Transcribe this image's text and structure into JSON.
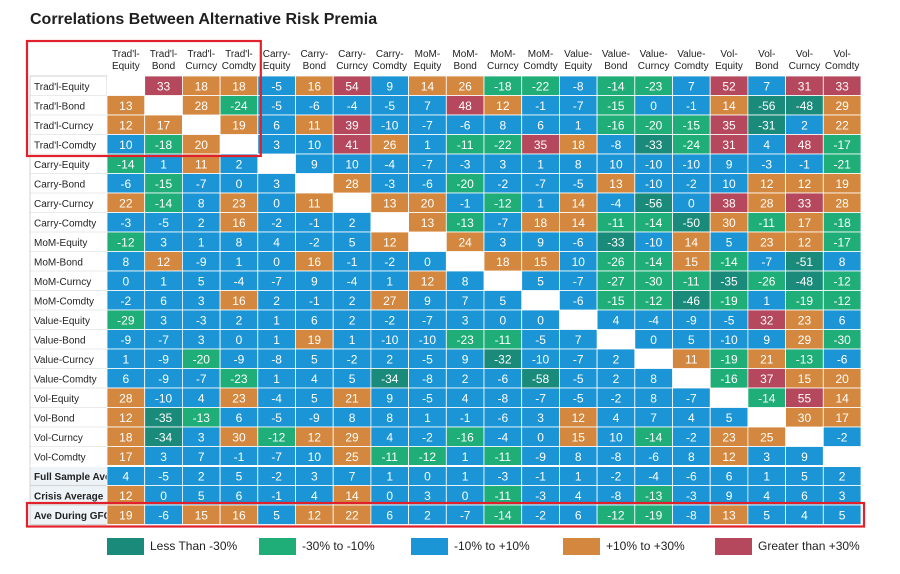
{
  "chart_data": {
    "type": "heatmap",
    "title": "Correlations Between Alternative Risk Premia",
    "columns": [
      [
        "Trad'l-",
        "Equity"
      ],
      [
        "Trad'l-",
        "Bond"
      ],
      [
        "Trad'l-",
        "Curncy"
      ],
      [
        "Trad'l-",
        "Comdty"
      ],
      [
        "Carry-",
        "Equity"
      ],
      [
        "Carry-",
        "Bond"
      ],
      [
        "Carry-",
        "Curncy"
      ],
      [
        "Carry-",
        "Comdty"
      ],
      [
        "MoM-",
        "Equity"
      ],
      [
        "MoM-",
        "Bond"
      ],
      [
        "MoM-",
        "Curncy"
      ],
      [
        "MoM-",
        "Comdty"
      ],
      [
        "Value-",
        "Equity"
      ],
      [
        "Value-",
        "Bond"
      ],
      [
        "Value-",
        "Curncy"
      ],
      [
        "Value-",
        "Comdty"
      ],
      [
        "Vol-",
        "Equity"
      ],
      [
        "Vol-",
        "Bond"
      ],
      [
        "Vol-",
        "Curncy"
      ],
      [
        "Vol-",
        "Comdty"
      ]
    ],
    "rows": [
      "Trad'l-Equity",
      "Trad'l-Bond",
      "Trad'l-Curncy",
      "Trad'l-Comdty",
      "Carry-Equity",
      "Carry-Bond",
      "Carry-Curncy",
      "Carry-Comdty",
      "MoM-Equity",
      "MoM-Bond",
      "MoM-Curncy",
      "MoM-Comdty",
      "Value-Equity",
      "Value-Bond",
      "Value-Curncy",
      "Value-Comdty",
      "Vol-Equity",
      "Vol-Bond",
      "Vol-Curncy",
      "Vol-Comdty",
      "Full Sample Ave",
      "Crisis Average",
      "Ave During GFC"
    ],
    "values": [
      [
        null,
        33,
        18,
        18,
        -5,
        16,
        54,
        9,
        14,
        26,
        -18,
        -22,
        -8,
        -14,
        -23,
        7,
        52,
        7,
        31,
        33
      ],
      [
        13,
        null,
        28,
        -24,
        -5,
        -6,
        -4,
        -5,
        7,
        48,
        12,
        -1,
        -7,
        -15,
        0,
        -1,
        14,
        -56,
        -48,
        29
      ],
      [
        12,
        17,
        null,
        19,
        6,
        11,
        39,
        -10,
        -7,
        -6,
        8,
        6,
        1,
        -16,
        -20,
        -15,
        35,
        -31,
        2,
        22
      ],
      [
        10,
        -18,
        20,
        null,
        3,
        10,
        41,
        26,
        1,
        -11,
        -22,
        35,
        18,
        -8,
        -33,
        -24,
        31,
        4,
        48,
        -17
      ],
      [
        -14,
        1,
        11,
        2,
        null,
        9,
        10,
        -4,
        -7,
        -3,
        3,
        1,
        8,
        10,
        -10,
        -10,
        9,
        -3,
        -1,
        -21
      ],
      [
        -6,
        -15,
        -7,
        0,
        3,
        null,
        28,
        -3,
        -6,
        -20,
        -2,
        -7,
        -5,
        13,
        -10,
        -2,
        10,
        12,
        12,
        19
      ],
      [
        22,
        -14,
        8,
        23,
        0,
        11,
        null,
        13,
        20,
        -1,
        -12,
        1,
        14,
        -4,
        -56,
        0,
        38,
        28,
        33,
        28
      ],
      [
        -3,
        -5,
        2,
        16,
        -2,
        -1,
        2,
        null,
        13,
        -13,
        -7,
        18,
        14,
        -11,
        -14,
        -50,
        30,
        -11,
        17,
        -18
      ],
      [
        -12,
        3,
        1,
        8,
        4,
        -2,
        5,
        12,
        null,
        24,
        3,
        9,
        -6,
        -33,
        -10,
        14,
        5,
        23,
        12,
        -17
      ],
      [
        8,
        12,
        -9,
        1,
        0,
        16,
        -1,
        -2,
        0,
        null,
        18,
        15,
        10,
        -26,
        -14,
        15,
        -14,
        -7,
        -51,
        8
      ],
      [
        0,
        1,
        5,
        -4,
        -7,
        9,
        -4,
        1,
        12,
        8,
        null,
        5,
        -7,
        -27,
        -30,
        -11,
        -35,
        -26,
        -48,
        -12
      ],
      [
        -2,
        6,
        3,
        16,
        2,
        -1,
        2,
        27,
        9,
        7,
        5,
        null,
        -6,
        -15,
        -12,
        -46,
        -19,
        1,
        -19,
        -12
      ],
      [
        -29,
        3,
        -3,
        2,
        1,
        6,
        2,
        -2,
        -7,
        3,
        0,
        0,
        null,
        4,
        -4,
        -9,
        -5,
        32,
        23,
        6
      ],
      [
        -9,
        -7,
        3,
        0,
        1,
        19,
        1,
        -10,
        -10,
        -23,
        -11,
        -5,
        7,
        null,
        0,
        5,
        -10,
        9,
        29,
        -30
      ],
      [
        1,
        -9,
        -20,
        -9,
        -8,
        5,
        -2,
        2,
        -5,
        9,
        -32,
        -10,
        -7,
        2,
        null,
        11,
        -19,
        21,
        -13,
        -6
      ],
      [
        6,
        -9,
        -7,
        -23,
        1,
        4,
        5,
        -34,
        -8,
        2,
        -6,
        -58,
        -5,
        2,
        8,
        null,
        -16,
        37,
        15,
        20
      ],
      [
        28,
        -10,
        4,
        23,
        -4,
        5,
        21,
        9,
        -5,
        4,
        -8,
        -7,
        -5,
        -2,
        8,
        -7,
        null,
        -14,
        55,
        14
      ],
      [
        12,
        -35,
        -13,
        6,
        -5,
        -9,
        8,
        8,
        1,
        -1,
        -6,
        3,
        12,
        4,
        7,
        4,
        5,
        null,
        30,
        17
      ],
      [
        18,
        -34,
        3,
        30,
        -12,
        12,
        29,
        4,
        -2,
        -16,
        -4,
        0,
        15,
        10,
        -14,
        -2,
        23,
        25,
        null,
        -2
      ],
      [
        17,
        3,
        7,
        -1,
        -7,
        10,
        25,
        -11,
        -12,
        1,
        -11,
        -9,
        8,
        -8,
        -6,
        8,
        12,
        3,
        9,
        null
      ],
      [
        4,
        -5,
        2,
        5,
        -2,
        3,
        7,
        1,
        0,
        1,
        -3,
        -1,
        1,
        -2,
        -4,
        -6,
        6,
        1,
        5,
        2
      ],
      [
        12,
        0,
        5,
        6,
        -1,
        4,
        14,
        0,
        3,
        0,
        -11,
        -3,
        4,
        -8,
        -13,
        -3,
        9,
        4,
        6,
        3
      ],
      [
        19,
        -6,
        15,
        16,
        5,
        12,
        22,
        6,
        2,
        -7,
        -14,
        -2,
        6,
        -12,
        -19,
        -8,
        13,
        5,
        4,
        5
      ]
    ],
    "bins": [
      {
        "label": "Less Than -30%",
        "color": "#1a8a7a"
      },
      {
        "label": "-30% to -10%",
        "color": "#1fae77"
      },
      {
        "label": "-10% to +10%",
        "color": "#1b95d6"
      },
      {
        "label": "+10% to +30%",
        "color": "#d4883f"
      },
      {
        "label": "Greater than +30%",
        "color": "#b5485c"
      }
    ],
    "highlight_color": "#e0202b"
  }
}
